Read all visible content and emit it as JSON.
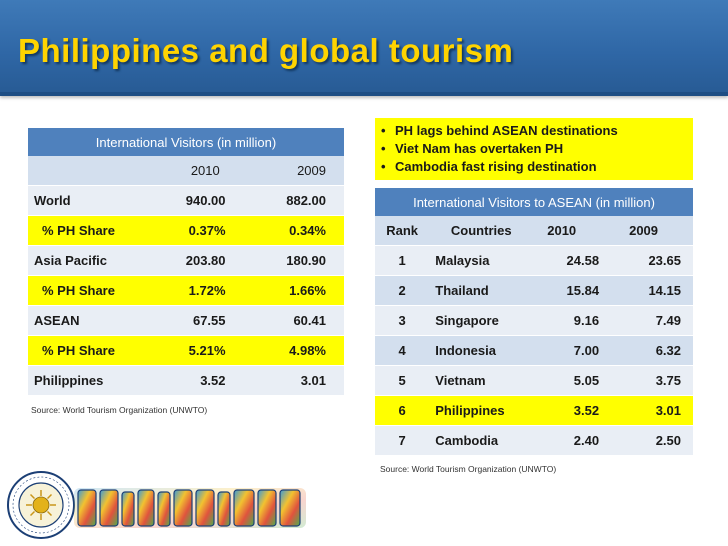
{
  "slide": {
    "title": "Philippines and global tourism"
  },
  "left_table": {
    "header": "International Visitors (in million)",
    "years": [
      "2010",
      "2009"
    ],
    "rows": [
      {
        "label": "World",
        "v2010": "940.00",
        "v2009": "882.00",
        "highlight": false
      },
      {
        "label": "% PH Share",
        "v2010": "0.37%",
        "v2009": "0.34%",
        "highlight": true
      },
      {
        "label": "Asia Pacific",
        "v2010": "203.80",
        "v2009": "180.90",
        "highlight": false
      },
      {
        "label": "% PH Share",
        "v2010": "1.72%",
        "v2009": "1.66%",
        "highlight": true
      },
      {
        "label": "ASEAN",
        "v2010": "67.55",
        "v2009": "60.41",
        "highlight": false
      },
      {
        "label": "% PH Share",
        "v2010": "5.21%",
        "v2009": "4.98%",
        "highlight": true
      },
      {
        "label": "Philippines",
        "v2010": "3.52",
        "v2009": "3.01",
        "highlight": false
      }
    ],
    "source": "Source:  World Tourism Organization (UNWTO)"
  },
  "bullets": [
    "PH lags behind ASEAN destinations",
    "Viet Nam has overtaken PH",
    "Cambodia fast rising destination"
  ],
  "right_table": {
    "header": "International Visitors to ASEAN (in million)",
    "columns": [
      "Rank",
      "Countries",
      "2010",
      "2009"
    ],
    "rows": [
      {
        "rank": "1",
        "country": "Malaysia",
        "v2010": "24.58",
        "v2009": "23.65",
        "highlight": false
      },
      {
        "rank": "2",
        "country": "Thailand",
        "v2010": "15.84",
        "v2009": "14.15",
        "highlight": false
      },
      {
        "rank": "3",
        "country": "Singapore",
        "v2010": "9.16",
        "v2009": "7.49",
        "highlight": false
      },
      {
        "rank": "4",
        "country": "Indonesia",
        "v2010": "7.00",
        "v2009": "6.32",
        "highlight": false
      },
      {
        "rank": "5",
        "country": "Vietnam",
        "v2010": "5.05",
        "v2009": "3.75",
        "highlight": false
      },
      {
        "rank": "6",
        "country": "Philippines",
        "v2010": "3.52",
        "v2009": "3.01",
        "highlight": true
      },
      {
        "rank": "7",
        "country": "Cambodia",
        "v2010": "2.40",
        "v2009": "2.50",
        "highlight": false
      }
    ],
    "source": "Source:  World Tourism Organization (UNWTO)"
  },
  "logos": {
    "seal_text": "DEPARTMENT OF TOURISM · PHILIPPINES",
    "wordmark": "PHILIPPINES"
  },
  "colors": {
    "title_bar": "#2f67a6",
    "title_text": "#ffd400",
    "table_header": "#4f81bd",
    "highlight": "#ffff00"
  }
}
